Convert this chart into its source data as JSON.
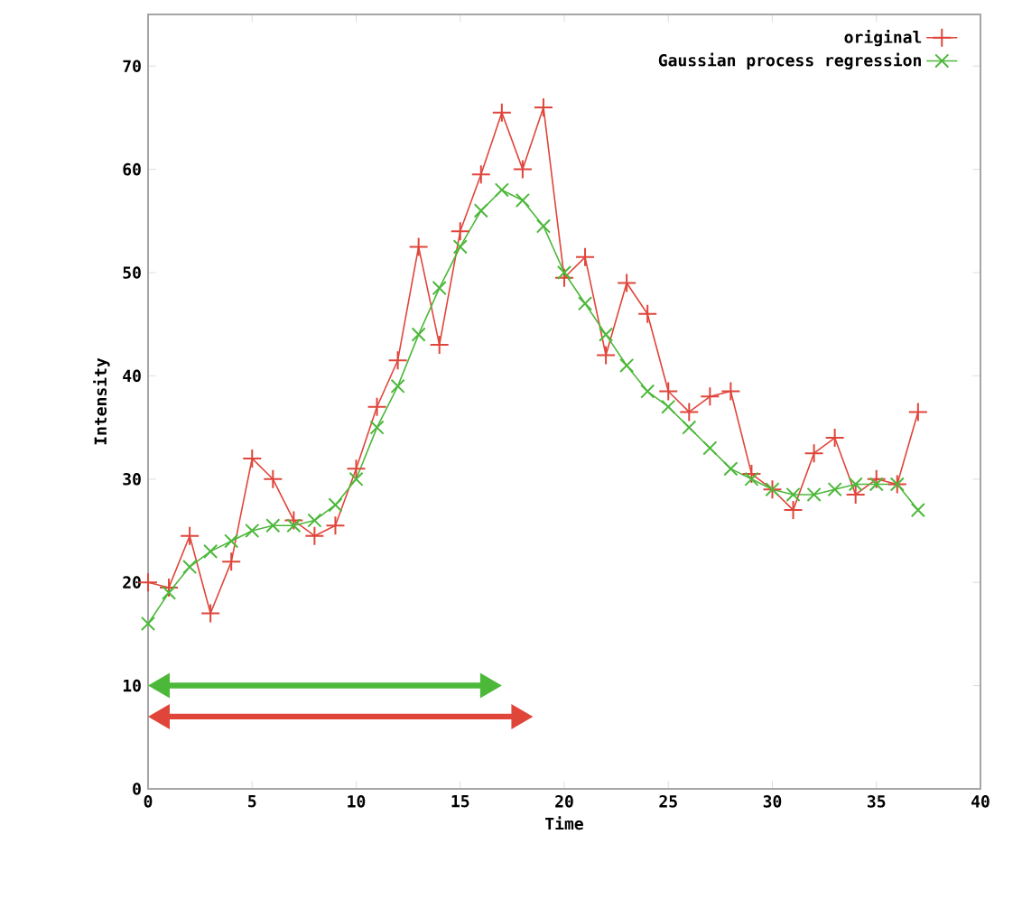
{
  "chart_data": {
    "type": "line",
    "xlabel": "Time",
    "ylabel": "Intensity",
    "xlim": [
      0,
      40
    ],
    "xticks": [
      0,
      5,
      10,
      15,
      20,
      25,
      30,
      35,
      40
    ],
    "ylim": [
      0,
      75
    ],
    "yticks": [
      0,
      10,
      20,
      30,
      40,
      50,
      60,
      70
    ],
    "legend": "top right",
    "grid": false,
    "series": [
      {
        "name": "original",
        "color": "#e0453a",
        "marker": "cross",
        "x": [
          0,
          1,
          2,
          3,
          4,
          5,
          6,
          7,
          8,
          9,
          10,
          11,
          12,
          13,
          14,
          15,
          16,
          17,
          18,
          19,
          20,
          21,
          22,
          23,
          24,
          25,
          26,
          27,
          28,
          29,
          30,
          31,
          32,
          33,
          34,
          35,
          36,
          37
        ],
        "values": [
          20,
          19.5,
          24.5,
          17,
          22,
          32,
          30,
          26,
          24.5,
          25.5,
          31,
          37,
          41.5,
          52.5,
          43,
          54,
          59.5,
          65.5,
          60,
          66,
          49.5,
          51.5,
          42,
          49,
          46,
          38.5,
          36.5,
          38,
          38.5,
          30.5,
          29,
          27,
          32.5,
          34,
          28.5,
          30,
          29.5,
          36.5
        ]
      },
      {
        "name": "Gaussian process regression",
        "color": "#4cb83a",
        "marker": "x",
        "x": [
          0,
          1,
          2,
          3,
          4,
          5,
          6,
          7,
          8,
          9,
          10,
          11,
          12,
          13,
          14,
          15,
          16,
          17,
          18,
          19,
          20,
          21,
          22,
          23,
          24,
          25,
          26,
          27,
          28,
          29,
          30,
          31,
          32,
          33,
          34,
          35,
          36,
          37
        ],
        "values": [
          16,
          19,
          21.5,
          23,
          24,
          25,
          25.5,
          25.5,
          26,
          27.5,
          30,
          35,
          39,
          44,
          48.5,
          52.5,
          56,
          58,
          57,
          54.5,
          50,
          47,
          44,
          41,
          38.5,
          37,
          35,
          33,
          31,
          30,
          29,
          28.5,
          28.5,
          29,
          29.5,
          29.5,
          29.5,
          27
        ]
      }
    ]
  }
}
